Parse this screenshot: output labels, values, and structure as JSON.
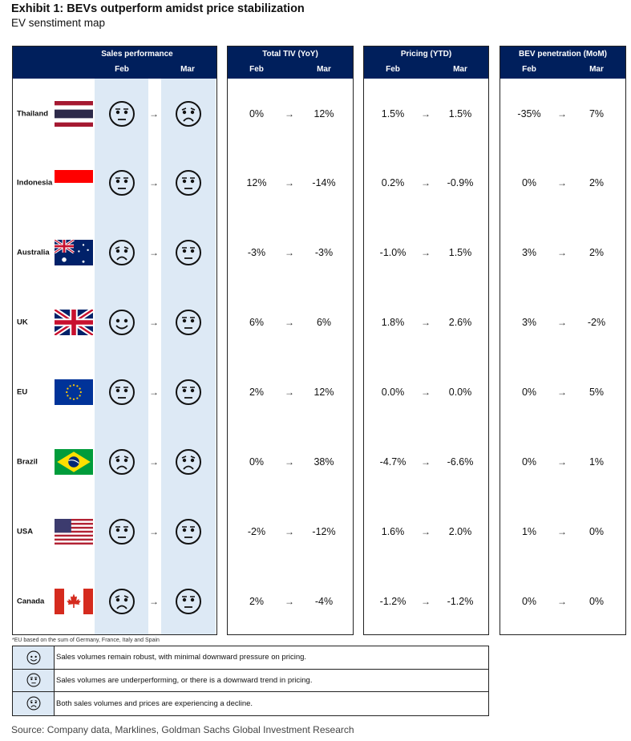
{
  "title": "Exhibit 1: BEVs outperform amidst price stabilization",
  "subtitle": "EV senstiment map",
  "panels": [
    {
      "title": "Sales performance",
      "feb": "Feb",
      "mar": "Mar"
    },
    {
      "title": "Total TIV (YoY)",
      "feb": "Feb",
      "mar": "Mar"
    },
    {
      "title": "Pricing (YTD)",
      "feb": "Feb",
      "mar": "Mar"
    },
    {
      "title": "BEV penetration (MoM)",
      "feb": "Feb",
      "mar": "Mar"
    }
  ],
  "arrow": "→",
  "rows": [
    {
      "country": "Thailand",
      "flag": "thailand",
      "sales": [
        "neutral",
        "sad"
      ],
      "tiv": [
        "0%",
        "12%"
      ],
      "pricing": [
        "1.5%",
        "1.5%"
      ],
      "bev": [
        "-35%",
        "7%"
      ]
    },
    {
      "country": "Indonesia",
      "flag": "indonesia",
      "sales": [
        "neutral",
        "neutral"
      ],
      "tiv": [
        "12%",
        "-14%"
      ],
      "pricing": [
        "0.2%",
        "-0.9%"
      ],
      "bev": [
        "0%",
        "2%"
      ]
    },
    {
      "country": "Australia",
      "flag": "australia",
      "sales": [
        "sad",
        "neutral"
      ],
      "tiv": [
        "-3%",
        "-3%"
      ],
      "pricing": [
        "-1.0%",
        "1.5%"
      ],
      "bev": [
        "3%",
        "2%"
      ]
    },
    {
      "country": "UK",
      "flag": "uk",
      "sales": [
        "happy",
        "neutral"
      ],
      "tiv": [
        "6%",
        "6%"
      ],
      "pricing": [
        "1.8%",
        "2.6%"
      ],
      "bev": [
        "3%",
        "-2%"
      ]
    },
    {
      "country": "EU",
      "flag": "eu",
      "sales": [
        "neutral",
        "neutral"
      ],
      "tiv": [
        "2%",
        "12%"
      ],
      "pricing": [
        "0.0%",
        "0.0%"
      ],
      "bev": [
        "0%",
        "5%"
      ]
    },
    {
      "country": "Brazil",
      "flag": "brazil",
      "sales": [
        "sad",
        "sad"
      ],
      "tiv": [
        "0%",
        "38%"
      ],
      "pricing": [
        "-4.7%",
        "-6.6%"
      ],
      "bev": [
        "0%",
        "1%"
      ]
    },
    {
      "country": "USA",
      "flag": "usa",
      "sales": [
        "neutral",
        "neutral"
      ],
      "tiv": [
        "-2%",
        "-12%"
      ],
      "pricing": [
        "1.6%",
        "2.0%"
      ],
      "bev": [
        "1%",
        "0%"
      ]
    },
    {
      "country": "Canada",
      "flag": "canada",
      "sales": [
        "sad",
        "neutral"
      ],
      "tiv": [
        "2%",
        "-4%"
      ],
      "pricing": [
        "-1.2%",
        "-1.2%"
      ],
      "bev": [
        "0%",
        "0%"
      ]
    }
  ],
  "footnote": "*EU based on the sum of Germany, France, Italy and Spain",
  "legend": [
    {
      "icon": "happy",
      "text": "Sales volumes remain robust, with minimal downward pressure on pricing."
    },
    {
      "icon": "neutral",
      "text": "Sales volumes are underperforming, or there is a downward trend in pricing."
    },
    {
      "icon": "sad",
      "text": "Both sales volumes and prices are experiencing a decline."
    }
  ],
  "source": "Source: Company data, Marklines, Goldman Sachs Global Investment Research",
  "colors": {
    "header": "#001f5c",
    "band": "#dde9f5"
  }
}
